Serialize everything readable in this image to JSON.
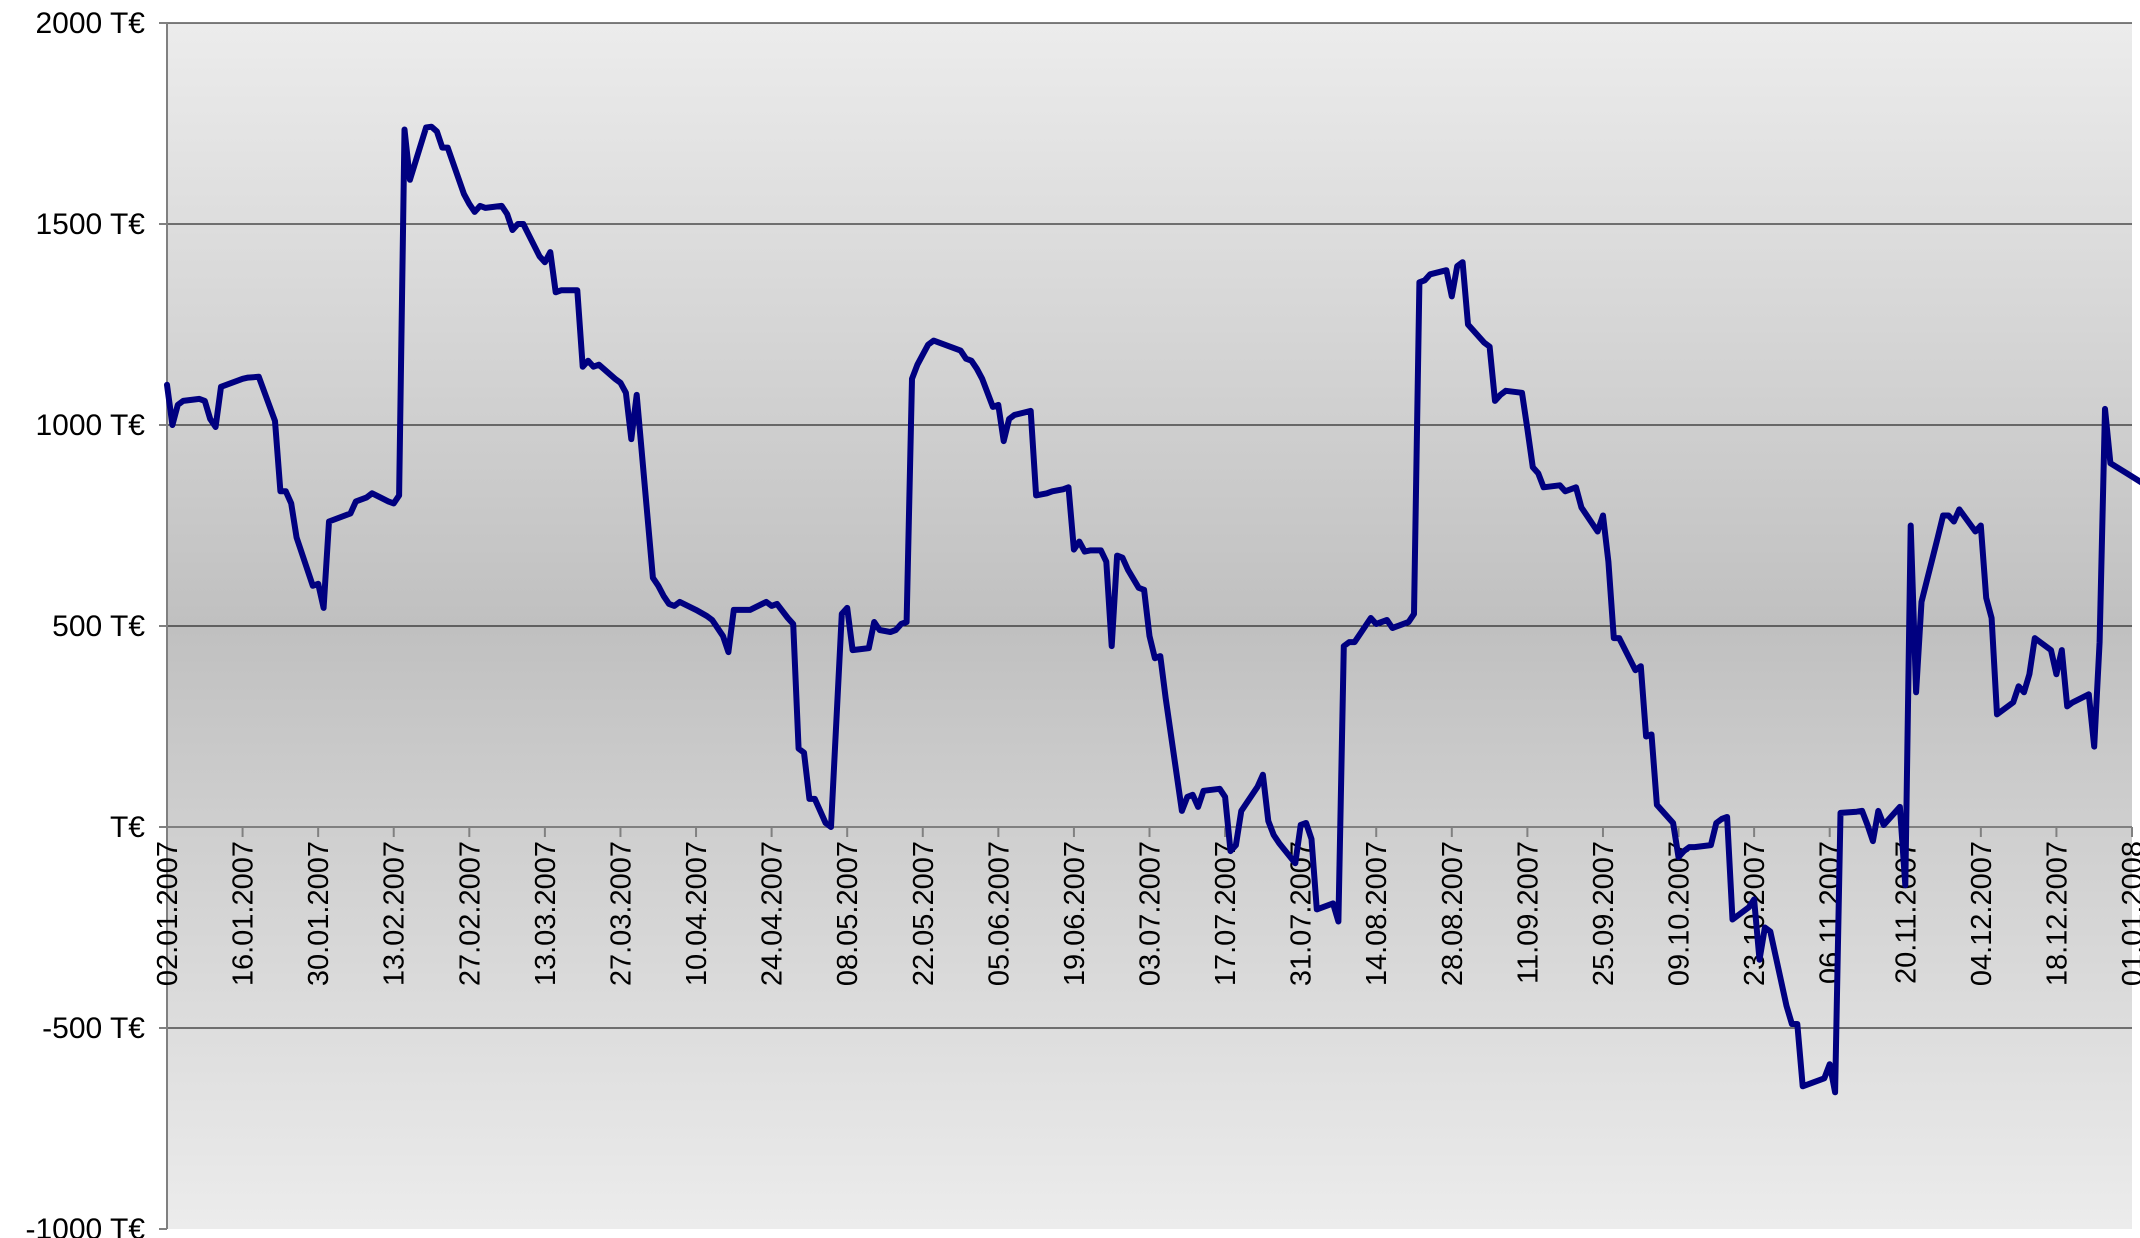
{
  "chart_data": {
    "type": "line",
    "title": "",
    "xlabel": "",
    "ylabel": "",
    "unit": "T€",
    "ylim": [
      -1000,
      2000
    ],
    "yticks": [
      2000,
      1500,
      1000,
      500,
      0,
      -500,
      -1000
    ],
    "ytick_labels": [
      "2000 T€",
      "1500 T€",
      "1000 T€",
      "500 T€",
      "T€",
      "-500 T€",
      "-1000 T€"
    ],
    "xlim": [
      "2007-01-02",
      "2008-01-01"
    ],
    "xtick_labels": [
      "02.01.2007",
      "16.01.2007",
      "30.01.2007",
      "13.02.2007",
      "27.02.2007",
      "13.03.2007",
      "27.03.2007",
      "10.04.2007",
      "24.04.2007",
      "08.05.2007",
      "22.05.2007",
      "05.06.2007",
      "19.06.2007",
      "03.07.2007",
      "17.07.2007",
      "31.07.2007",
      "14.08.2007",
      "28.08.2007",
      "11.09.2007",
      "25.09.2007",
      "09.10.2007",
      "23.10.2007",
      "06.11.2007",
      "20.11.2007",
      "04.12.2007",
      "18.12.2007",
      "01.01.2008"
    ],
    "grid": true,
    "legend": "none",
    "colors": {
      "line": "#000080",
      "grid": "#000000",
      "axis": "#808080",
      "plot_light": "#ececec",
      "plot_dark": "#c0c0c0"
    },
    "series": [
      {
        "points": [
          [
            "2007-01-02",
            1100
          ],
          [
            "2007-01-03",
            1000
          ],
          [
            "2007-01-04",
            1050
          ],
          [
            "2007-01-05",
            1060
          ],
          [
            "2007-01-08",
            1065
          ],
          [
            "2007-01-09",
            1060
          ],
          [
            "2007-01-10",
            1015
          ],
          [
            "2007-01-11",
            995
          ],
          [
            "2007-01-12",
            1095
          ],
          [
            "2007-01-15",
            1110
          ],
          [
            "2007-01-16",
            1115
          ],
          [
            "2007-01-17",
            1118
          ],
          [
            "2007-01-19",
            1120
          ],
          [
            "2007-01-22",
            1010
          ],
          [
            "2007-01-23",
            835
          ],
          [
            "2007-01-24",
            835
          ],
          [
            "2007-01-25",
            805
          ],
          [
            "2007-01-26",
            720
          ],
          [
            "2007-01-29",
            600
          ],
          [
            "2007-01-30",
            605
          ],
          [
            "2007-01-31",
            545
          ],
          [
            "2007-02-01",
            760
          ],
          [
            "2007-02-05",
            780
          ],
          [
            "2007-02-06",
            810
          ],
          [
            "2007-02-08",
            820
          ],
          [
            "2007-02-09",
            830
          ],
          [
            "2007-02-12",
            810
          ],
          [
            "2007-02-13",
            805
          ],
          [
            "2007-02-14",
            825
          ],
          [
            "2007-02-15",
            1735
          ],
          [
            "2007-02-16",
            1610
          ],
          [
            "2007-02-19",
            1740
          ],
          [
            "2007-02-20",
            1742
          ],
          [
            "2007-02-21",
            1730
          ],
          [
            "2007-02-22",
            1690
          ],
          [
            "2007-02-23",
            1690
          ],
          [
            "2007-02-26",
            1575
          ],
          [
            "2007-02-27",
            1550
          ],
          [
            "2007-02-28",
            1530
          ],
          [
            "2007-03-01",
            1545
          ],
          [
            "2007-03-02",
            1540
          ],
          [
            "2007-03-05",
            1545
          ],
          [
            "2007-03-06",
            1525
          ],
          [
            "2007-03-07",
            1485
          ],
          [
            "2007-03-08",
            1500
          ],
          [
            "2007-03-09",
            1500
          ],
          [
            "2007-03-12",
            1420
          ],
          [
            "2007-03-13",
            1405
          ],
          [
            "2007-03-14",
            1430
          ],
          [
            "2007-03-15",
            1330
          ],
          [
            "2007-03-16",
            1335
          ],
          [
            "2007-03-19",
            1335
          ],
          [
            "2007-03-20",
            1145
          ],
          [
            "2007-03-21",
            1160
          ],
          [
            "2007-03-22",
            1145
          ],
          [
            "2007-03-23",
            1150
          ],
          [
            "2007-03-26",
            1115
          ],
          [
            "2007-03-27",
            1105
          ],
          [
            "2007-03-28",
            1080
          ],
          [
            "2007-03-29",
            965
          ],
          [
            "2007-03-30",
            1075
          ],
          [
            "2007-04-02",
            620
          ],
          [
            "2007-04-03",
            600
          ],
          [
            "2007-04-04",
            575
          ],
          [
            "2007-04-05",
            555
          ],
          [
            "2007-04-06",
            550
          ],
          [
            "2007-04-07",
            560
          ],
          [
            "2007-04-10",
            540
          ],
          [
            "2007-04-12",
            525
          ],
          [
            "2007-04-13",
            515
          ],
          [
            "2007-04-15",
            475
          ],
          [
            "2007-04-16",
            435
          ],
          [
            "2007-04-17",
            540
          ],
          [
            "2007-04-18",
            540
          ],
          [
            "2007-04-19",
            540
          ],
          [
            "2007-04-20",
            540
          ],
          [
            "2007-04-23",
            560
          ],
          [
            "2007-04-24",
            550
          ],
          [
            "2007-04-25",
            555
          ],
          [
            "2007-04-27",
            520
          ],
          [
            "2007-04-28",
            505
          ],
          [
            "2007-04-29",
            195
          ],
          [
            "2007-04-30",
            185
          ],
          [
            "2007-05-01",
            70
          ],
          [
            "2007-05-02",
            70
          ],
          [
            "2007-05-04",
            10
          ],
          [
            "2007-05-05",
            0
          ],
          [
            "2007-05-07",
            530
          ],
          [
            "2007-05-08",
            545
          ],
          [
            "2007-05-09",
            440
          ],
          [
            "2007-05-12",
            445
          ],
          [
            "2007-05-13",
            510
          ],
          [
            "2007-05-14",
            490
          ],
          [
            "2007-05-16",
            485
          ],
          [
            "2007-05-17",
            490
          ],
          [
            "2007-05-18",
            505
          ],
          [
            "2007-05-19",
            510
          ],
          [
            "2007-05-20",
            1115
          ],
          [
            "2007-05-21",
            1150
          ],
          [
            "2007-05-22",
            1175
          ],
          [
            "2007-05-23",
            1200
          ],
          [
            "2007-05-24",
            1210
          ],
          [
            "2007-05-25",
            1205
          ],
          [
            "2007-05-28",
            1190
          ],
          [
            "2007-05-29",
            1185
          ],
          [
            "2007-05-30",
            1165
          ],
          [
            "2007-05-31",
            1160
          ],
          [
            "2007-06-01",
            1140
          ],
          [
            "2007-06-02",
            1115
          ],
          [
            "2007-06-04",
            1045
          ],
          [
            "2007-06-05",
            1050
          ],
          [
            "2007-06-06",
            960
          ],
          [
            "2007-06-07",
            1015
          ],
          [
            "2007-06-08",
            1025
          ],
          [
            "2007-06-11",
            1035
          ],
          [
            "2007-06-12",
            825
          ],
          [
            "2007-06-14",
            830
          ],
          [
            "2007-06-15",
            835
          ],
          [
            "2007-06-17",
            840
          ],
          [
            "2007-06-18",
            845
          ],
          [
            "2007-06-19",
            690
          ],
          [
            "2007-06-20",
            710
          ],
          [
            "2007-06-21",
            685
          ],
          [
            "2007-06-22",
            688
          ],
          [
            "2007-06-24",
            688
          ],
          [
            "2007-06-25",
            660
          ],
          [
            "2007-06-26",
            450
          ],
          [
            "2007-06-27",
            675
          ],
          [
            "2007-06-28",
            670
          ],
          [
            "2007-06-29",
            640
          ],
          [
            "2007-07-01",
            595
          ],
          [
            "2007-07-02",
            590
          ],
          [
            "2007-07-03",
            475
          ],
          [
            "2007-07-04",
            420
          ],
          [
            "2007-07-05",
            425
          ],
          [
            "2007-07-06",
            320
          ],
          [
            "2007-07-09",
            40
          ],
          [
            "2007-07-10",
            75
          ],
          [
            "2007-07-11",
            80
          ],
          [
            "2007-07-12",
            50
          ],
          [
            "2007-07-13",
            90
          ],
          [
            "2007-07-16",
            95
          ],
          [
            "2007-07-17",
            75
          ],
          [
            "2007-07-18",
            -60
          ],
          [
            "2007-07-19",
            -45
          ],
          [
            "2007-07-20",
            40
          ],
          [
            "2007-07-23",
            100
          ],
          [
            "2007-07-24",
            130
          ],
          [
            "2007-07-25",
            15
          ],
          [
            "2007-07-26",
            -20
          ],
          [
            "2007-07-27",
            -40
          ],
          [
            "2007-07-30",
            -90
          ],
          [
            "2007-07-31",
            5
          ],
          [
            "2007-08-01",
            10
          ],
          [
            "2007-08-02",
            -30
          ],
          [
            "2007-08-03",
            -205
          ],
          [
            "2007-08-05",
            -195
          ],
          [
            "2007-08-06",
            -190
          ],
          [
            "2007-08-07",
            -235
          ],
          [
            "2007-08-08",
            450
          ],
          [
            "2007-08-09",
            460
          ],
          [
            "2007-08-10",
            460
          ],
          [
            "2007-08-13",
            520
          ],
          [
            "2007-08-14",
            505
          ],
          [
            "2007-08-15",
            510
          ],
          [
            "2007-08-16",
            515
          ],
          [
            "2007-08-17",
            495
          ],
          [
            "2007-08-20",
            510
          ],
          [
            "2007-08-21",
            530
          ],
          [
            "2007-08-22",
            1355
          ],
          [
            "2007-08-23",
            1360
          ],
          [
            "2007-08-24",
            1375
          ],
          [
            "2007-08-27",
            1385
          ],
          [
            "2007-08-28",
            1320
          ],
          [
            "2007-08-29",
            1395
          ],
          [
            "2007-08-30",
            1405
          ],
          [
            "2007-08-31",
            1250
          ],
          [
            "2007-09-03",
            1205
          ],
          [
            "2007-09-04",
            1195
          ],
          [
            "2007-09-05",
            1060
          ],
          [
            "2007-09-06",
            1075
          ],
          [
            "2007-09-07",
            1085
          ],
          [
            "2007-09-10",
            1080
          ],
          [
            "2007-09-11",
            990
          ],
          [
            "2007-09-12",
            895
          ],
          [
            "2007-09-13",
            880
          ],
          [
            "2007-09-14",
            845
          ],
          [
            "2007-09-17",
            850
          ],
          [
            "2007-09-18",
            835
          ],
          [
            "2007-09-19",
            840
          ],
          [
            "2007-09-20",
            845
          ],
          [
            "2007-09-21",
            795
          ],
          [
            "2007-09-24",
            735
          ],
          [
            "2007-09-25",
            775
          ],
          [
            "2007-09-26",
            660
          ],
          [
            "2007-09-27",
            470
          ],
          [
            "2007-09-28",
            470
          ],
          [
            "2007-10-01",
            390
          ],
          [
            "2007-10-02",
            400
          ],
          [
            "2007-10-03",
            225
          ],
          [
            "2007-10-04",
            230
          ],
          [
            "2007-10-05",
            55
          ],
          [
            "2007-10-08",
            10
          ],
          [
            "2007-10-09",
            -75
          ],
          [
            "2007-10-10",
            -60
          ],
          [
            "2007-10-11",
            -50
          ],
          [
            "2007-10-12",
            -50
          ],
          [
            "2007-10-15",
            -45
          ],
          [
            "2007-10-16",
            10
          ],
          [
            "2007-10-17",
            20
          ],
          [
            "2007-10-18",
            25
          ],
          [
            "2007-10-19",
            -230
          ],
          [
            "2007-10-22",
            -200
          ],
          [
            "2007-10-23",
            -180
          ],
          [
            "2007-10-24",
            -330
          ],
          [
            "2007-10-25",
            -250
          ],
          [
            "2007-10-26",
            -260
          ],
          [
            "2007-10-29",
            -445
          ],
          [
            "2007-10-30",
            -490
          ],
          [
            "2007-10-31",
            -490
          ],
          [
            "2007-11-01",
            -645
          ],
          [
            "2007-11-02",
            -640
          ],
          [
            "2007-11-05",
            -625
          ],
          [
            "2007-11-06",
            -590
          ],
          [
            "2007-11-07",
            -660
          ],
          [
            "2007-11-08",
            35
          ],
          [
            "2007-11-11",
            38
          ],
          [
            "2007-11-12",
            40
          ],
          [
            "2007-11-13",
            5
          ],
          [
            "2007-11-14",
            -35
          ],
          [
            "2007-11-15",
            40
          ],
          [
            "2007-11-16",
            5
          ],
          [
            "2007-11-19",
            50
          ],
          [
            "2007-11-20",
            -145
          ],
          [
            "2007-11-21",
            750
          ],
          [
            "2007-11-22",
            335
          ],
          [
            "2007-11-23",
            560
          ],
          [
            "2007-11-26",
            720
          ],
          [
            "2007-11-27",
            775
          ],
          [
            "2007-11-28",
            775
          ],
          [
            "2007-11-29",
            760
          ],
          [
            "2007-11-30",
            790
          ],
          [
            "2007-12-03",
            735
          ],
          [
            "2007-12-04",
            750
          ],
          [
            "2007-12-05",
            570
          ],
          [
            "2007-12-06",
            520
          ],
          [
            "2007-12-07",
            280
          ],
          [
            "2007-12-10",
            310
          ],
          [
            "2007-12-11",
            350
          ],
          [
            "2007-12-12",
            335
          ],
          [
            "2007-12-13",
            380
          ],
          [
            "2007-12-14",
            470
          ],
          [
            "2007-12-17",
            440
          ],
          [
            "2007-12-18",
            380
          ],
          [
            "2007-12-19",
            440
          ],
          [
            "2007-12-20",
            300
          ],
          [
            "2007-12-21",
            310
          ],
          [
            "2007-12-24",
            330
          ],
          [
            "2007-12-25",
            200
          ],
          [
            "2007-12-26",
            460
          ],
          [
            "2007-12-27",
            1040
          ],
          [
            "2007-12-28",
            905
          ],
          [
            "2007-12-31",
            880
          ],
          [
            "2008-01-03",
            855
          ],
          [
            "2008-01-04",
            835
          ],
          [
            "2008-01-08",
            800
          ],
          [
            "2008-01-10",
            785
          ]
        ]
      }
    ]
  }
}
